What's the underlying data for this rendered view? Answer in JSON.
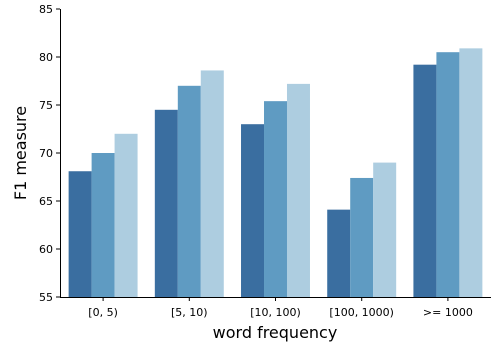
{
  "chart_data": {
    "type": "bar",
    "title": "",
    "xlabel": "word frequency",
    "ylabel": "F1 measure",
    "ylim": [
      55,
      85
    ],
    "yticks": [
      55,
      60,
      65,
      70,
      75,
      80,
      85
    ],
    "categories": [
      "[0, 5)",
      "[5, 10)",
      "[10, 100)",
      "[100, 1000)",
      ">= 1000"
    ],
    "series": [
      {
        "values": [
          68.1,
          74.5,
          73.0,
          64.1,
          79.2
        ],
        "color": "#3a6ea0"
      },
      {
        "values": [
          70.0,
          77.0,
          75.4,
          67.4,
          80.5
        ],
        "color": "#5f9bc2"
      },
      {
        "values": [
          72.0,
          78.6,
          77.2,
          69.0,
          80.9
        ],
        "color": "#adcde0"
      }
    ],
    "grid": false,
    "legend": "none"
  }
}
